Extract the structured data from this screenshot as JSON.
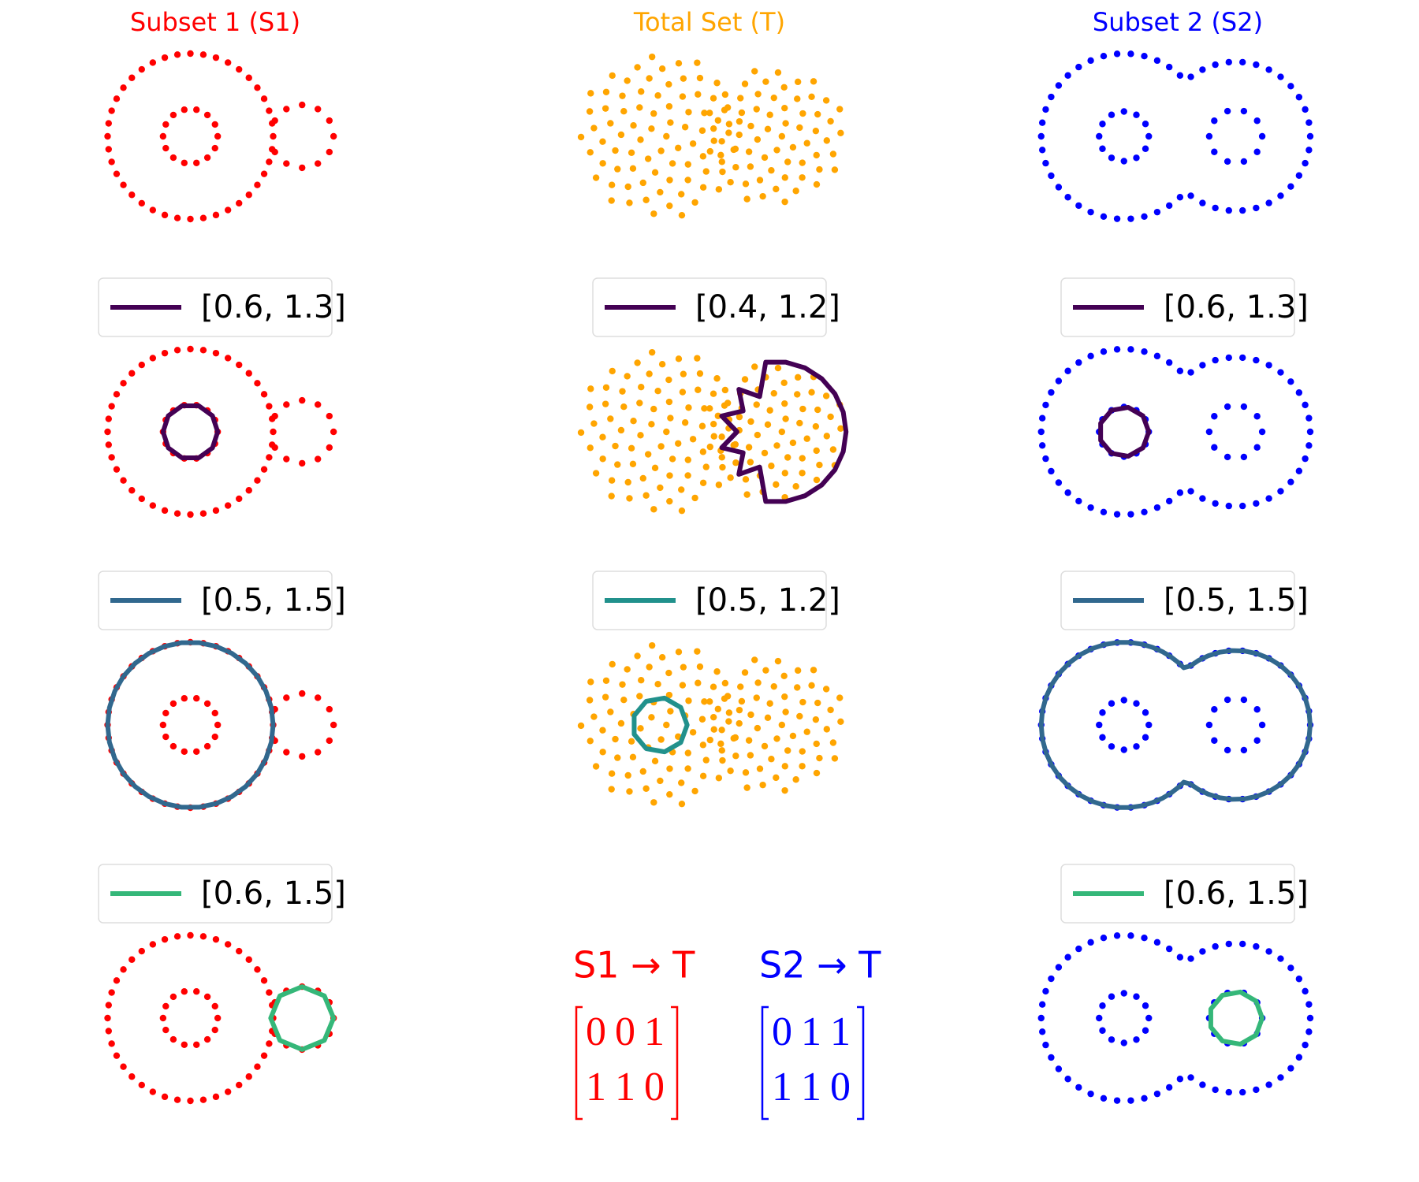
{
  "panels": [
    {
      "title": "Subset 1 (S1)",
      "color": "#ff0000",
      "legends": [
        {
          "label": "[0.6, 1.3]",
          "color": "#440154"
        },
        {
          "label": "[0.5, 1.5]",
          "color": "#31688e"
        },
        {
          "label": "[0.6, 1.5]",
          "color": "#35b779"
        }
      ]
    },
    {
      "title": "Total Set (T)",
      "color": "#ffa500",
      "legends": [
        {
          "label": "[0.4, 1.2]",
          "color": "#440154"
        },
        {
          "label": "[0.5, 1.2]",
          "color": "#21918c"
        }
      ]
    },
    {
      "title": "Subset 2 (S2)",
      "color": "#0000ff",
      "legends": [
        {
          "label": "[0.6, 1.3]",
          "color": "#440154"
        },
        {
          "label": "[0.5, 1.5]",
          "color": "#31688e"
        },
        {
          "label": "[0.6, 1.5]",
          "color": "#35b779"
        }
      ]
    }
  ],
  "matrices": [
    {
      "label": "S1 → T",
      "color": "#ff0000",
      "rows": [
        [
          0,
          0,
          1
        ],
        [
          1,
          1,
          0
        ]
      ]
    },
    {
      "label": "S2 → T",
      "color": "#0000ff",
      "rows": [
        [
          0,
          1,
          1
        ],
        [
          1,
          1,
          0
        ]
      ]
    }
  ]
}
